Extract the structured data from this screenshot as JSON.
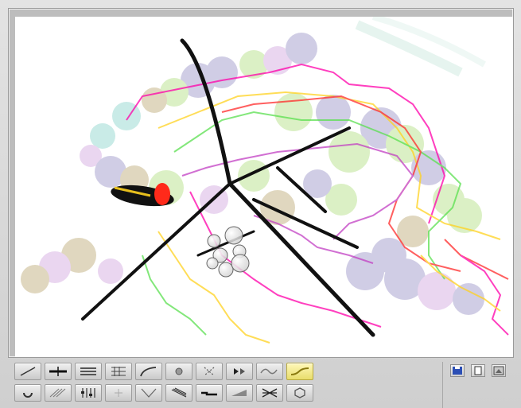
{
  "app": {
    "window_title": ""
  },
  "canvas": {
    "background": "#ffffff",
    "stroke_colors": [
      "#ff00aa",
      "#ffd21f",
      "#5ae04f",
      "#ff2a2a",
      "#c23fc3"
    ],
    "bubble_colors": [
      "#7c73b7",
      "#9bd65c",
      "#a88f4a",
      "#66c7bc",
      "#c58bd6"
    ]
  },
  "tools": {
    "row1": [
      {
        "name": "line-tool-icon"
      },
      {
        "name": "crosshair-tool-icon"
      },
      {
        "name": "parallel-lines-tool-icon"
      },
      {
        "name": "grid-tool-icon"
      },
      {
        "name": "curve-tool-icon"
      },
      {
        "name": "circle-tool-icon"
      },
      {
        "name": "scatter-tool-icon"
      },
      {
        "name": "fill-tool-icon"
      },
      {
        "name": "wave-tool-icon"
      },
      {
        "name": "squiggle-tool-icon",
        "active": true
      }
    ],
    "row2": [
      {
        "name": "spiral-tool-icon"
      },
      {
        "name": "hatching-tool-icon"
      },
      {
        "name": "mixer-tool-icon"
      },
      {
        "name": "sparkle-tool-icon"
      },
      {
        "name": "funnel-tool-icon"
      },
      {
        "name": "fan-tool-icon"
      },
      {
        "name": "step-tool-icon"
      },
      {
        "name": "smudge-tool-icon"
      },
      {
        "name": "cross-hatch-tool-icon"
      },
      {
        "name": "hexagon-tool-icon"
      }
    ]
  },
  "file_actions": {
    "save": "save-icon",
    "new": "new-document-icon",
    "export": "export-image-icon"
  },
  "colors": {
    "toolbar_bg": "#d9d9d9",
    "tool_active": "#e8dd6c",
    "save_blue": "#2c4fb5"
  }
}
